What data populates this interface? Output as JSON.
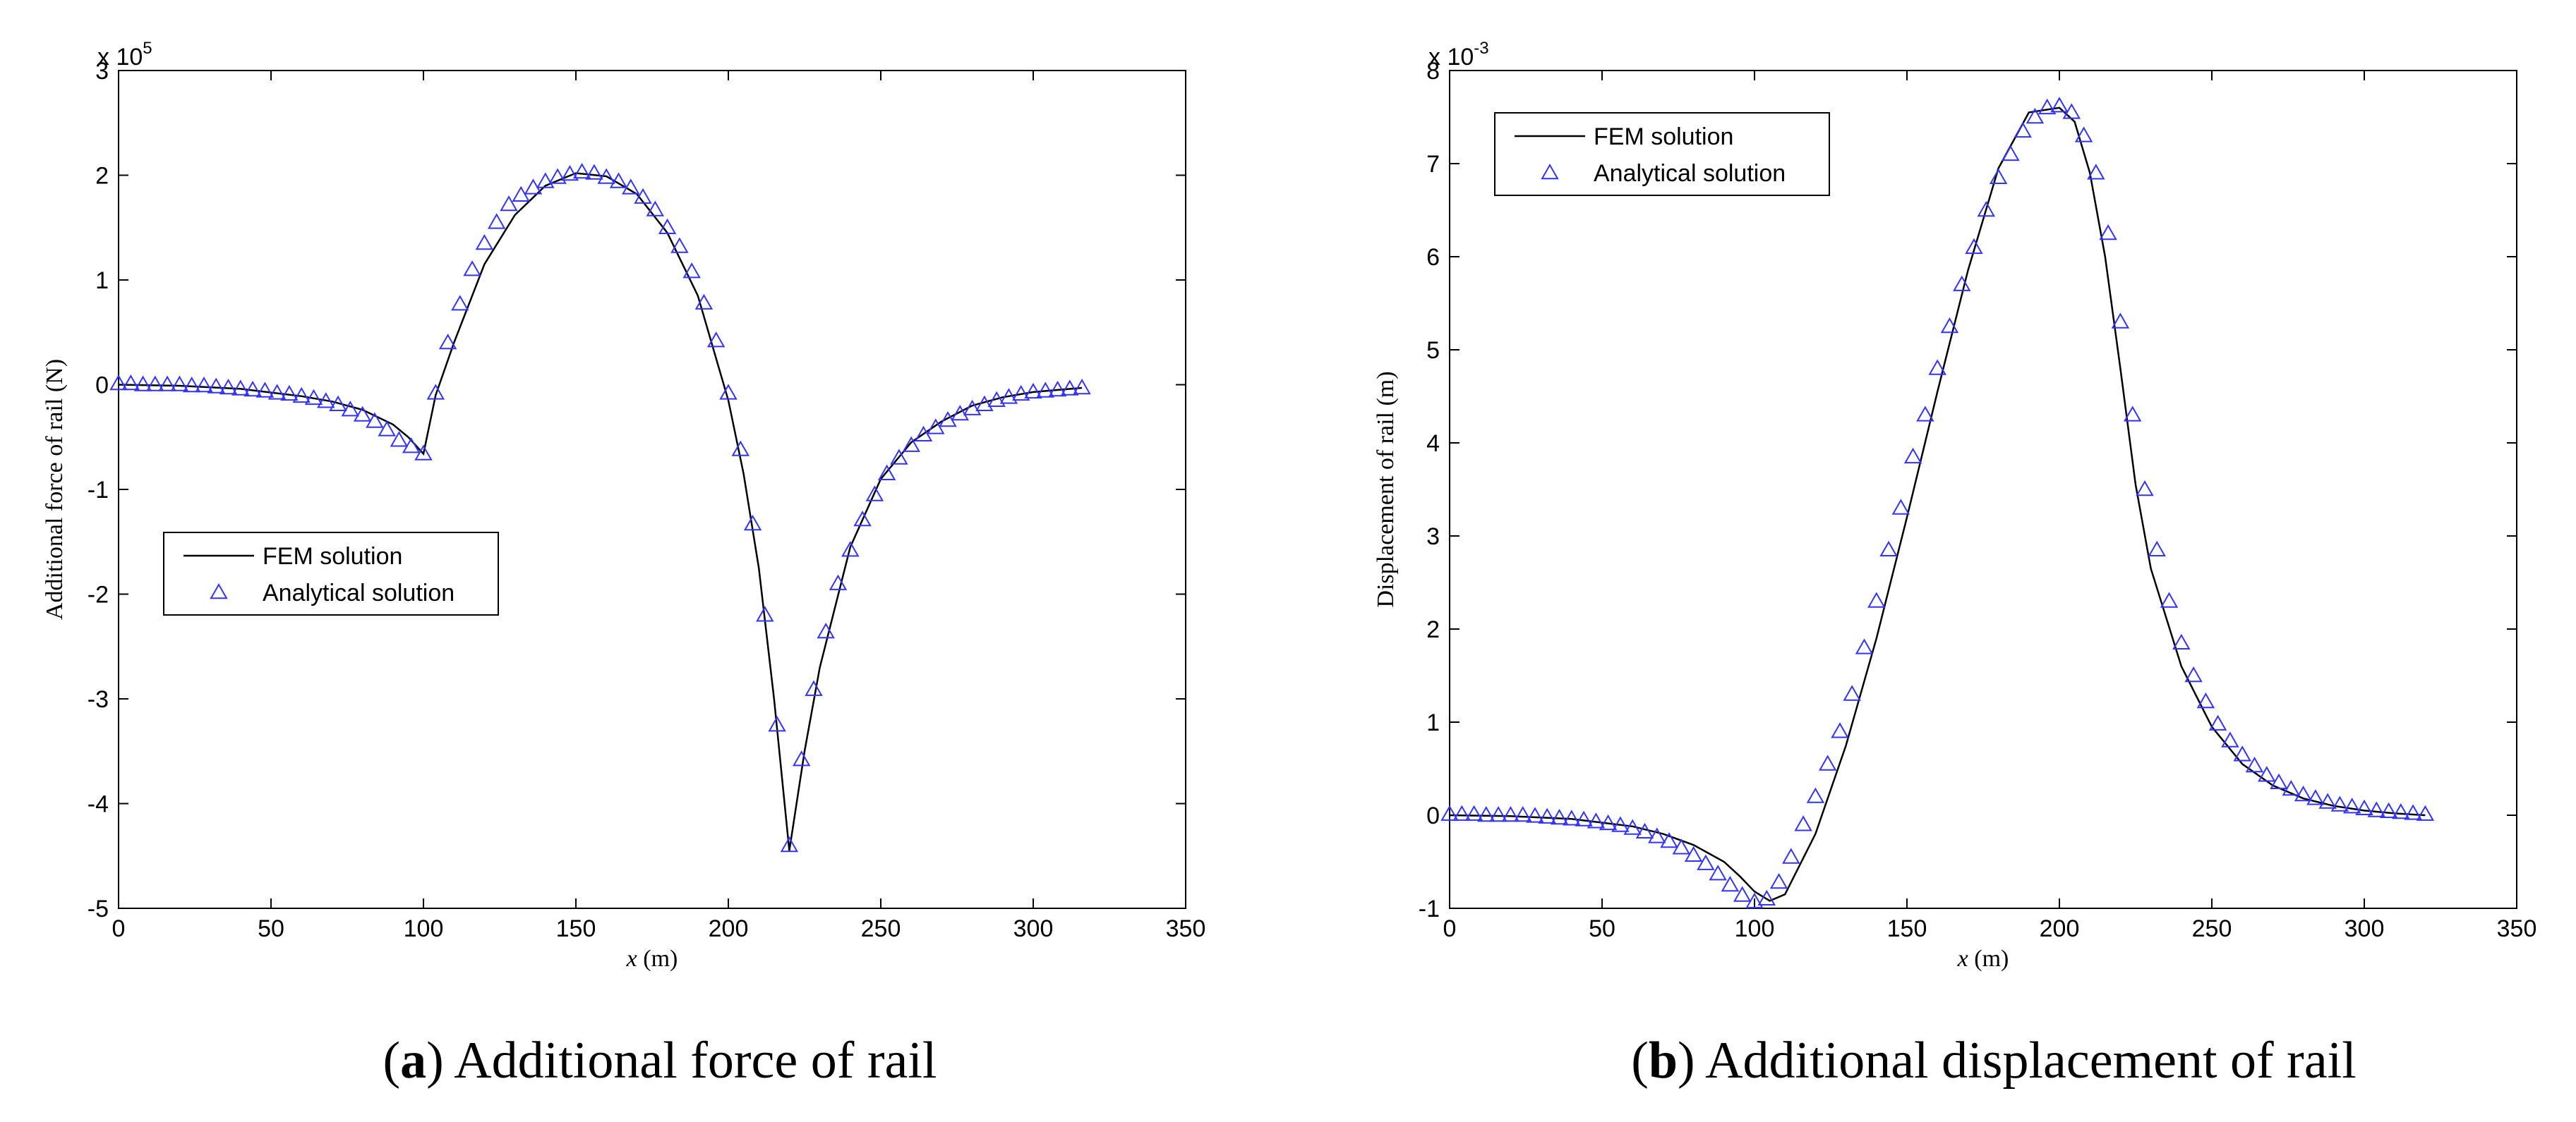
{
  "chart_data": [
    {
      "id": "a",
      "type": "line",
      "title": "",
      "caption_letter": "a",
      "caption_text": "Additional force of rail",
      "xlabel_var": "x",
      "xlabel_unit": " (m)",
      "ylabel": "Additional force of rail (N)",
      "exponent_prefix": "x 10",
      "exponent": "5",
      "xlim": [
        0,
        350
      ],
      "ylim": [
        -5,
        3
      ],
      "xticks": [
        0,
        50,
        100,
        150,
        200,
        250,
        300,
        350
      ],
      "yticks": [
        -5,
        -4,
        -3,
        -2,
        -1,
        0,
        1,
        2,
        3
      ],
      "legend_position": "middle-left",
      "series": [
        {
          "name": "FEM solution",
          "style": "line",
          "color": "#000000",
          "x": [
            0,
            20,
            40,
            60,
            70,
            80,
            90,
            95,
            100,
            104,
            110,
            120,
            130,
            140,
            150,
            160,
            170,
            180,
            190,
            200,
            205,
            210,
            215,
            220,
            225,
            230,
            240,
            250,
            260,
            270,
            280,
            290,
            300,
            316
          ],
          "y": [
            0,
            -0.01,
            -0.04,
            -0.11,
            -0.16,
            -0.24,
            -0.38,
            -0.5,
            -0.66,
            -0.1,
            0.4,
            1.15,
            1.62,
            1.9,
            2.02,
            1.99,
            1.82,
            1.45,
            0.85,
            -0.15,
            -0.85,
            -1.75,
            -3.0,
            -4.45,
            -3.5,
            -2.7,
            -1.55,
            -0.9,
            -0.55,
            -0.35,
            -0.2,
            -0.12,
            -0.07,
            -0.03
          ]
        },
        {
          "name": "Analytical solution",
          "style": "marker",
          "marker": "triangle",
          "color": "#3333ff",
          "x": [
            0,
            4,
            8,
            12,
            16,
            20,
            24,
            28,
            32,
            36,
            40,
            44,
            48,
            52,
            56,
            60,
            64,
            68,
            72,
            76,
            80,
            84,
            88,
            92,
            96,
            100,
            104,
            108,
            112,
            116,
            120,
            124,
            128,
            132,
            136,
            140,
            144,
            148,
            152,
            156,
            160,
            164,
            168,
            172,
            176,
            180,
            184,
            188,
            192,
            196,
            200,
            204,
            208,
            212,
            216,
            220,
            224,
            228,
            232,
            236,
            240,
            244,
            248,
            252,
            256,
            260,
            264,
            268,
            272,
            276,
            280,
            284,
            288,
            292,
            296,
            300,
            304,
            308,
            312,
            316
          ],
          "y": [
            0.01,
            0.01,
            0,
            0,
            0,
            0,
            -0.01,
            -0.01,
            -0.02,
            -0.03,
            -0.04,
            -0.05,
            -0.06,
            -0.08,
            -0.09,
            -0.11,
            -0.13,
            -0.16,
            -0.19,
            -0.24,
            -0.29,
            -0.35,
            -0.43,
            -0.53,
            -0.59,
            -0.66,
            -0.08,
            0.4,
            0.77,
            1.1,
            1.35,
            1.55,
            1.72,
            1.81,
            1.88,
            1.94,
            1.98,
            2.01,
            2.03,
            2.02,
            1.98,
            1.94,
            1.88,
            1.79,
            1.67,
            1.5,
            1.32,
            1.08,
            0.78,
            0.42,
            -0.08,
            -0.62,
            -1.33,
            -2.2,
            -3.25,
            -4.4,
            -3.58,
            -2.91,
            -2.36,
            -1.9,
            -1.58,
            -1.29,
            -1.05,
            -0.85,
            -0.7,
            -0.58,
            -0.48,
            -0.41,
            -0.34,
            -0.28,
            -0.23,
            -0.19,
            -0.15,
            -0.12,
            -0.09,
            -0.07,
            -0.06,
            -0.05,
            -0.04,
            -0.03
          ]
        }
      ]
    },
    {
      "id": "b",
      "type": "line",
      "title": "",
      "caption_letter": "b",
      "caption_text": "Additional displacement of rail",
      "xlabel_var": "x",
      "xlabel_unit": " (m)",
      "ylabel": "Displacement of rail (m)",
      "exponent_prefix": "x 10",
      "exponent": "-3",
      "xlim": [
        0,
        350
      ],
      "ylim": [
        -1,
        8
      ],
      "xticks": [
        0,
        50,
        100,
        150,
        200,
        250,
        300,
        350
      ],
      "yticks": [
        -1,
        0,
        1,
        2,
        3,
        4,
        5,
        6,
        7,
        8
      ],
      "legend_position": "top-left",
      "series": [
        {
          "name": "FEM solution",
          "style": "line",
          "color": "#000000",
          "x": [
            0,
            20,
            40,
            60,
            70,
            80,
            90,
            95,
            100,
            105,
            110,
            120,
            130,
            140,
            150,
            160,
            170,
            180,
            190,
            200,
            205,
            210,
            215,
            220,
            225,
            230,
            240,
            250,
            260,
            270,
            280,
            290,
            300,
            310,
            320
          ],
          "y": [
            0,
            -0.01,
            -0.04,
            -0.12,
            -0.2,
            -0.32,
            -0.5,
            -0.65,
            -0.82,
            -0.92,
            -0.85,
            -0.2,
            0.75,
            1.9,
            3.2,
            4.55,
            5.85,
            6.95,
            7.55,
            7.6,
            7.45,
            6.9,
            6.0,
            4.8,
            3.55,
            2.65,
            1.6,
            0.95,
            0.55,
            0.32,
            0.18,
            0.1,
            0.05,
            0.02,
            0
          ]
        },
        {
          "name": "Analytical solution",
          "style": "marker",
          "marker": "triangle",
          "color": "#3333ff",
          "x": [
            0,
            4,
            8,
            12,
            16,
            20,
            24,
            28,
            32,
            36,
            40,
            44,
            48,
            52,
            56,
            60,
            64,
            68,
            72,
            76,
            80,
            84,
            88,
            92,
            96,
            100,
            104,
            108,
            112,
            116,
            120,
            124,
            128,
            132,
            136,
            140,
            144,
            148,
            152,
            156,
            160,
            164,
            168,
            172,
            176,
            180,
            184,
            188,
            192,
            196,
            200,
            204,
            208,
            212,
            216,
            220,
            224,
            228,
            232,
            236,
            240,
            244,
            248,
            252,
            256,
            260,
            264,
            268,
            272,
            276,
            280,
            284,
            288,
            292,
            296,
            300,
            304,
            308,
            312,
            316,
            320
          ],
          "y": [
            0.01,
            0.01,
            0.01,
            0,
            0,
            0,
            0,
            -0.01,
            -0.02,
            -0.03,
            -0.04,
            -0.05,
            -0.07,
            -0.09,
            -0.11,
            -0.14,
            -0.18,
            -0.23,
            -0.28,
            -0.35,
            -0.43,
            -0.52,
            -0.63,
            -0.75,
            -0.86,
            -0.93,
            -0.9,
            -0.72,
            -0.45,
            -0.1,
            0.2,
            0.55,
            0.9,
            1.3,
            1.8,
            2.3,
            2.85,
            3.3,
            3.85,
            4.3,
            4.8,
            5.25,
            5.7,
            6.1,
            6.5,
            6.85,
            7.1,
            7.35,
            7.5,
            7.6,
            7.62,
            7.55,
            7.3,
            6.9,
            6.25,
            5.3,
            4.3,
            3.5,
            2.85,
            2.3,
            1.85,
            1.5,
            1.22,
            0.98,
            0.8,
            0.65,
            0.53,
            0.43,
            0.35,
            0.28,
            0.22,
            0.18,
            0.14,
            0.11,
            0.09,
            0.07,
            0.05,
            0.04,
            0.03,
            0.02,
            0.01
          ]
        }
      ]
    }
  ]
}
